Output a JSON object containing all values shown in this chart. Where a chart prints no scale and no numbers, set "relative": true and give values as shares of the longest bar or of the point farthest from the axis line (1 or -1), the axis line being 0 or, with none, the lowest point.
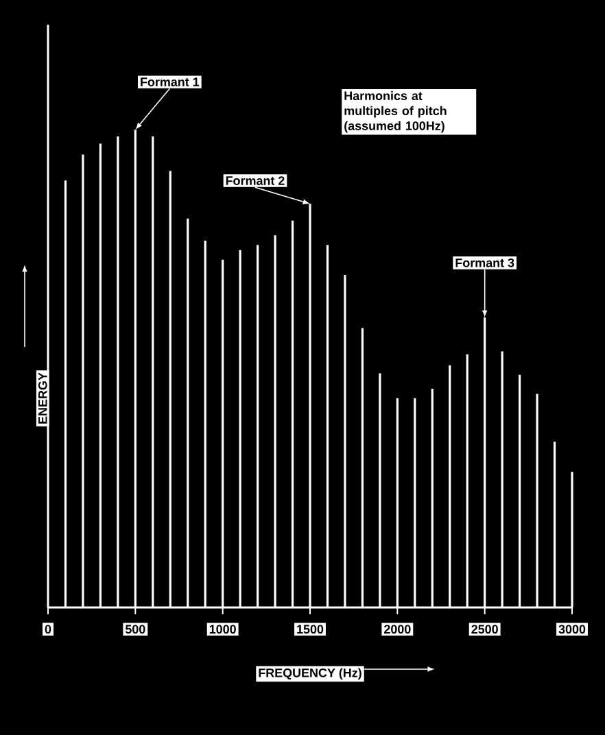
{
  "chart_data": {
    "type": "bar",
    "xlabel": "FREQUENCY (Hz)",
    "ylabel": "ENERGY",
    "relative": true,
    "color": "#ffffff",
    "x": [
      100,
      200,
      300,
      400,
      500,
      600,
      700,
      800,
      900,
      1000,
      1100,
      1200,
      1300,
      1400,
      1500,
      1600,
      1700,
      1800,
      1900,
      2000,
      2100,
      2200,
      2300,
      2400,
      2500,
      2600,
      2700,
      2800,
      2900,
      3000
    ],
    "values": [
      0.894,
      0.948,
      0.971,
      0.986,
      1.0,
      0.986,
      0.914,
      0.814,
      0.768,
      0.728,
      0.748,
      0.759,
      0.779,
      0.81,
      0.845,
      0.759,
      0.696,
      0.585,
      0.49,
      0.438,
      0.438,
      0.458,
      0.507,
      0.53,
      0.607,
      0.536,
      0.487,
      0.447,
      0.347,
      0.284
    ],
    "xlim": [
      0,
      3000
    ],
    "xticks": [
      0,
      500,
      1000,
      1500,
      2000,
      2500,
      3000
    ],
    "annotations": [
      {
        "text": "Formant 1",
        "x": 500,
        "y": 1.0
      },
      {
        "text": "Formant 2",
        "x": 1500,
        "y": 0.845
      },
      "Harmonics at multiples of pitch (assumed 100Hz)",
      {
        "text": "Formant 3",
        "x": 2500,
        "y": 0.607
      }
    ]
  }
}
